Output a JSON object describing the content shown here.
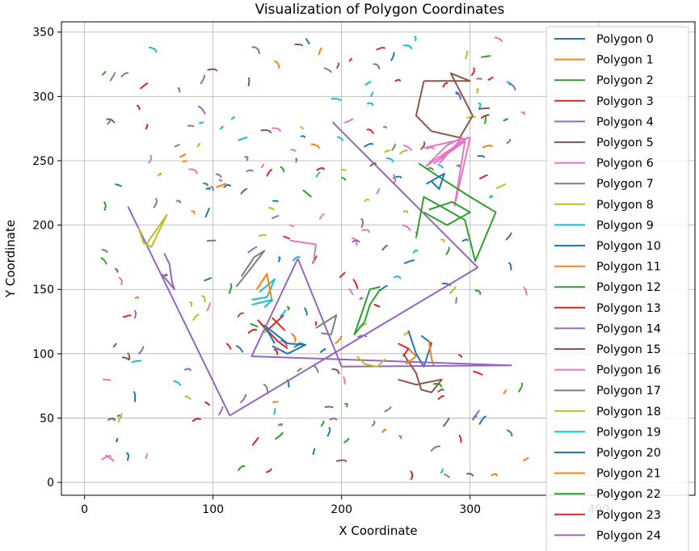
{
  "chart_data": {
    "type": "line",
    "title": "Visualization of Polygon Coordinates",
    "xlabel": "X Coordinate",
    "ylabel": "Y Coordinate",
    "xlim": [
      -18,
      475
    ],
    "ylim": [
      -10,
      358
    ],
    "xticks": [
      0,
      100,
      200,
      300,
      400
    ],
    "yticks": [
      0,
      50,
      100,
      150,
      200,
      250,
      300,
      350
    ],
    "grid": true,
    "legend_position": "right",
    "palette": [
      "#1f77b4",
      "#ff7f0e",
      "#2ca02c",
      "#d62728",
      "#9467bd",
      "#8c564b",
      "#e377c2",
      "#7f7f7f",
      "#bcbd22",
      "#17becf"
    ],
    "series": [
      {
        "name": "Polygon 0",
        "points": [
          [
            252,
            118
          ],
          [
            258,
            100
          ],
          [
            264,
            90
          ],
          [
            270,
            108
          ],
          [
            262,
            114
          ]
        ]
      },
      {
        "name": "Polygon 1",
        "points": [
          [
            268,
            110
          ],
          [
            270,
            96
          ],
          [
            272,
            90
          ]
        ]
      },
      {
        "name": "Polygon 2",
        "points": [
          [
            230,
            150
          ],
          [
            222,
            138
          ],
          [
            218,
            125
          ],
          [
            210,
            115
          ],
          [
            222,
            150
          ],
          [
            230,
            152
          ]
        ]
      },
      {
        "name": "Polygon 3",
        "points": [
          [
            155,
            130
          ],
          [
            142,
            118
          ],
          [
            135,
            126
          ],
          [
            150,
            110
          ],
          [
            158,
            104
          ]
        ]
      },
      {
        "name": "Polygon 4",
        "points": [
          [
            193,
            280
          ],
          [
            306,
            167
          ],
          [
            113,
            52
          ],
          [
            34,
            214
          ],
          [
            113,
            52
          ]
        ]
      },
      {
        "name": "Polygon 5",
        "points": [
          [
            264,
            312
          ],
          [
            300,
            312
          ],
          [
            285,
            318
          ],
          [
            302,
            285
          ],
          [
            292,
            268
          ],
          [
            270,
            273
          ],
          [
            258,
            285
          ],
          [
            264,
            312
          ]
        ]
      },
      {
        "name": "Polygon 6",
        "points": [
          [
            264,
            260
          ],
          [
            300,
            268
          ],
          [
            288,
            215
          ],
          [
            296,
            265
          ],
          [
            272,
            248
          ],
          [
            298,
            268
          ],
          [
            266,
            246
          ],
          [
            282,
            262
          ],
          [
            294,
            268
          ],
          [
            276,
            248
          ]
        ]
      },
      {
        "name": "Polygon 7",
        "points": [
          [
            122,
            160
          ],
          [
            132,
            175
          ],
          [
            140,
            180
          ],
          [
            126,
            162
          ],
          [
            118,
            152
          ]
        ]
      },
      {
        "name": "Polygon 8",
        "points": [
          [
            42,
            198
          ],
          [
            46,
            186
          ],
          [
            52,
            183
          ],
          [
            64,
            208
          ],
          [
            48,
            185
          ]
        ]
      },
      {
        "name": "Polygon 9",
        "points": [
          [
            136,
            148
          ],
          [
            148,
            158
          ],
          [
            142,
            144
          ],
          [
            130,
            142
          ]
        ]
      },
      {
        "name": "Polygon 10",
        "points": [
          [
            146,
            106
          ],
          [
            158,
            100
          ],
          [
            172,
            107
          ],
          [
            158,
            108
          ],
          [
            140,
            122
          ],
          [
            148,
            108
          ]
        ]
      },
      {
        "name": "Polygon 11",
        "points": [
          [
            134,
            150
          ],
          [
            142,
            162
          ],
          [
            146,
            140
          ]
        ]
      },
      {
        "name": "Polygon 12",
        "points": [
          [
            260,
            248
          ],
          [
            272,
            240
          ],
          [
            300,
            222
          ],
          [
            320,
            210
          ],
          [
            304,
            172
          ],
          [
            296,
            204
          ],
          [
            264,
            222
          ],
          [
            258,
            190
          ]
        ]
      },
      {
        "name": "Polygon 13",
        "points": [
          [
            156,
            118
          ],
          [
            150,
            124
          ],
          [
            146,
            128
          ]
        ]
      },
      {
        "name": "Polygon 14",
        "points": [
          [
            166,
            174
          ],
          [
            200,
            90
          ],
          [
            332,
            91
          ],
          [
            130,
            98
          ],
          [
            166,
            174
          ]
        ]
      },
      {
        "name": "Polygon 15",
        "points": [
          [
            248,
            100
          ],
          [
            258,
            85
          ],
          [
            262,
            72
          ],
          [
            270,
            70
          ],
          [
            278,
            80
          ],
          [
            258,
            76
          ],
          [
            244,
            80
          ]
        ]
      },
      {
        "name": "Polygon 16",
        "points": [
          [
            160,
            188
          ],
          [
            180,
            185
          ],
          [
            178,
            170
          ]
        ]
      },
      {
        "name": "Polygon 17",
        "points": [
          [
            180,
            120
          ],
          [
            196,
            130
          ],
          [
            192,
            115
          ],
          [
            184,
            116
          ]
        ]
      },
      {
        "name": "Polygon 18",
        "points": [
          [
            212,
            98
          ],
          [
            218,
            92
          ],
          [
            228,
            90
          ],
          [
            234,
            96
          ]
        ]
      },
      {
        "name": "Polygon 19",
        "points": [
          [
            130,
            138
          ],
          [
            146,
            142
          ],
          [
            140,
            136
          ]
        ]
      },
      {
        "name": "Polygon 20",
        "points": [
          [
            270,
            234
          ],
          [
            276,
            228
          ],
          [
            280,
            240
          ],
          [
            266,
            232
          ]
        ]
      },
      {
        "name": "Polygon 21",
        "points": [
          [
            252,
            104
          ],
          [
            258,
            98
          ],
          [
            250,
            92
          ]
        ]
      },
      {
        "name": "Polygon 22",
        "points": [
          [
            264,
            210
          ],
          [
            282,
            200
          ],
          [
            300,
            210
          ],
          [
            286,
            218
          ],
          [
            268,
            212
          ]
        ]
      },
      {
        "name": "Polygon 23",
        "points": [
          [
            244,
            108
          ],
          [
            252,
            104
          ],
          [
            248,
            98
          ]
        ]
      },
      {
        "name": "Polygon 24",
        "points": [
          [
            62,
            178
          ],
          [
            66,
            170
          ],
          [
            68,
            156
          ],
          [
            70,
            150
          ],
          [
            60,
            162
          ]
        ]
      }
    ]
  }
}
